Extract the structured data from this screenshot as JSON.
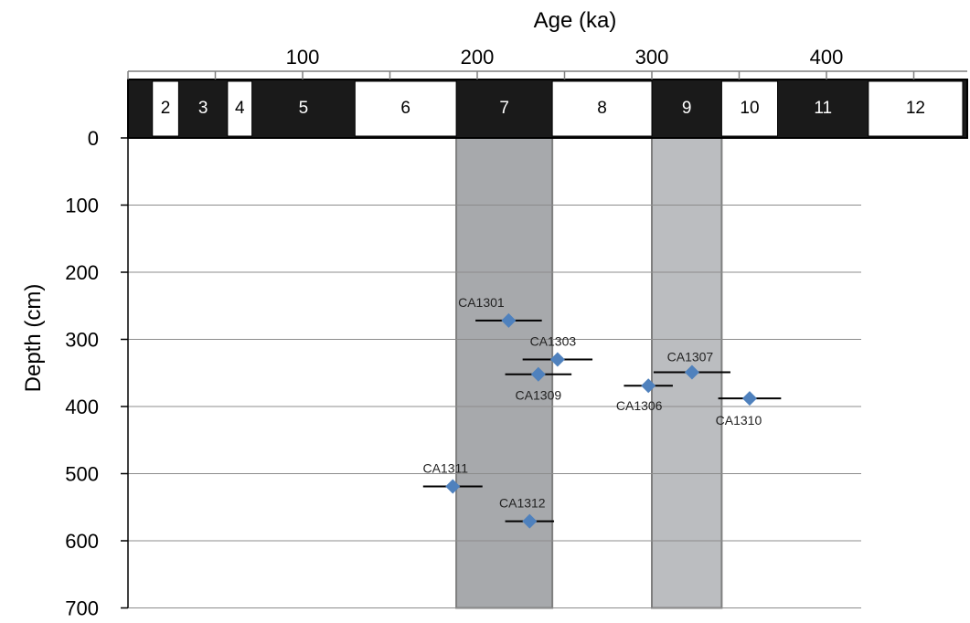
{
  "chart_data": {
    "type": "scatter",
    "xlabel": "Age (ka)",
    "ylabel": "Depth (cm)",
    "xlim": [
      0,
      470
    ],
    "ylim": [
      0,
      700
    ],
    "x_ticks": [
      100,
      200,
      300,
      400
    ],
    "y_ticks": [
      0,
      100,
      200,
      300,
      400,
      500,
      600,
      700
    ],
    "grid": "horizontal",
    "points": [
      {
        "label": "CA1301",
        "age": 218,
        "depth": 272,
        "err": 19
      },
      {
        "label": "CA1303",
        "age": 246,
        "depth": 330,
        "err": 20
      },
      {
        "label": "CA1309",
        "age": 235,
        "depth": 352,
        "err": 19
      },
      {
        "label": "CA1306",
        "age": 298,
        "depth": 369,
        "err": 14
      },
      {
        "label": "CA1307",
        "age": 323,
        "depth": 349,
        "err": 22
      },
      {
        "label": "CA1310",
        "age": 356,
        "depth": 388,
        "err": 18
      },
      {
        "label": "CA1311",
        "age": 186,
        "depth": 519,
        "err": 17
      },
      {
        "label": "CA1312",
        "age": 230,
        "depth": 571,
        "err": 14
      }
    ],
    "marine_isotope_stages": [
      {
        "label": "2",
        "start": 14,
        "end": 29,
        "color": "white"
      },
      {
        "label": "3",
        "start": 29,
        "end": 57,
        "color": "black"
      },
      {
        "label": "4",
        "start": 57,
        "end": 71,
        "color": "white"
      },
      {
        "label": "5",
        "start": 71,
        "end": 130,
        "color": "black"
      },
      {
        "label": "6",
        "start": 130,
        "end": 188,
        "color": "white"
      },
      {
        "label": "7",
        "start": 188,
        "end": 243,
        "color": "black"
      },
      {
        "label": "8",
        "start": 243,
        "end": 300,
        "color": "white"
      },
      {
        "label": "9",
        "start": 300,
        "end": 340,
        "color": "black"
      },
      {
        "label": "10",
        "start": 340,
        "end": 372,
        "color": "white"
      },
      {
        "label": "11",
        "start": 372,
        "end": 424,
        "color": "black"
      },
      {
        "label": "12",
        "start": 424,
        "end": 478,
        "color": "white"
      }
    ],
    "shaded_bands": [
      {
        "name": "stage-7-band",
        "start": 188,
        "end": 243,
        "color": "#a7a9ac"
      },
      {
        "name": "stage-9-band",
        "start": 300,
        "end": 340,
        "color": "#bbbdc0"
      }
    ],
    "marker_color": "#4f81bd"
  }
}
